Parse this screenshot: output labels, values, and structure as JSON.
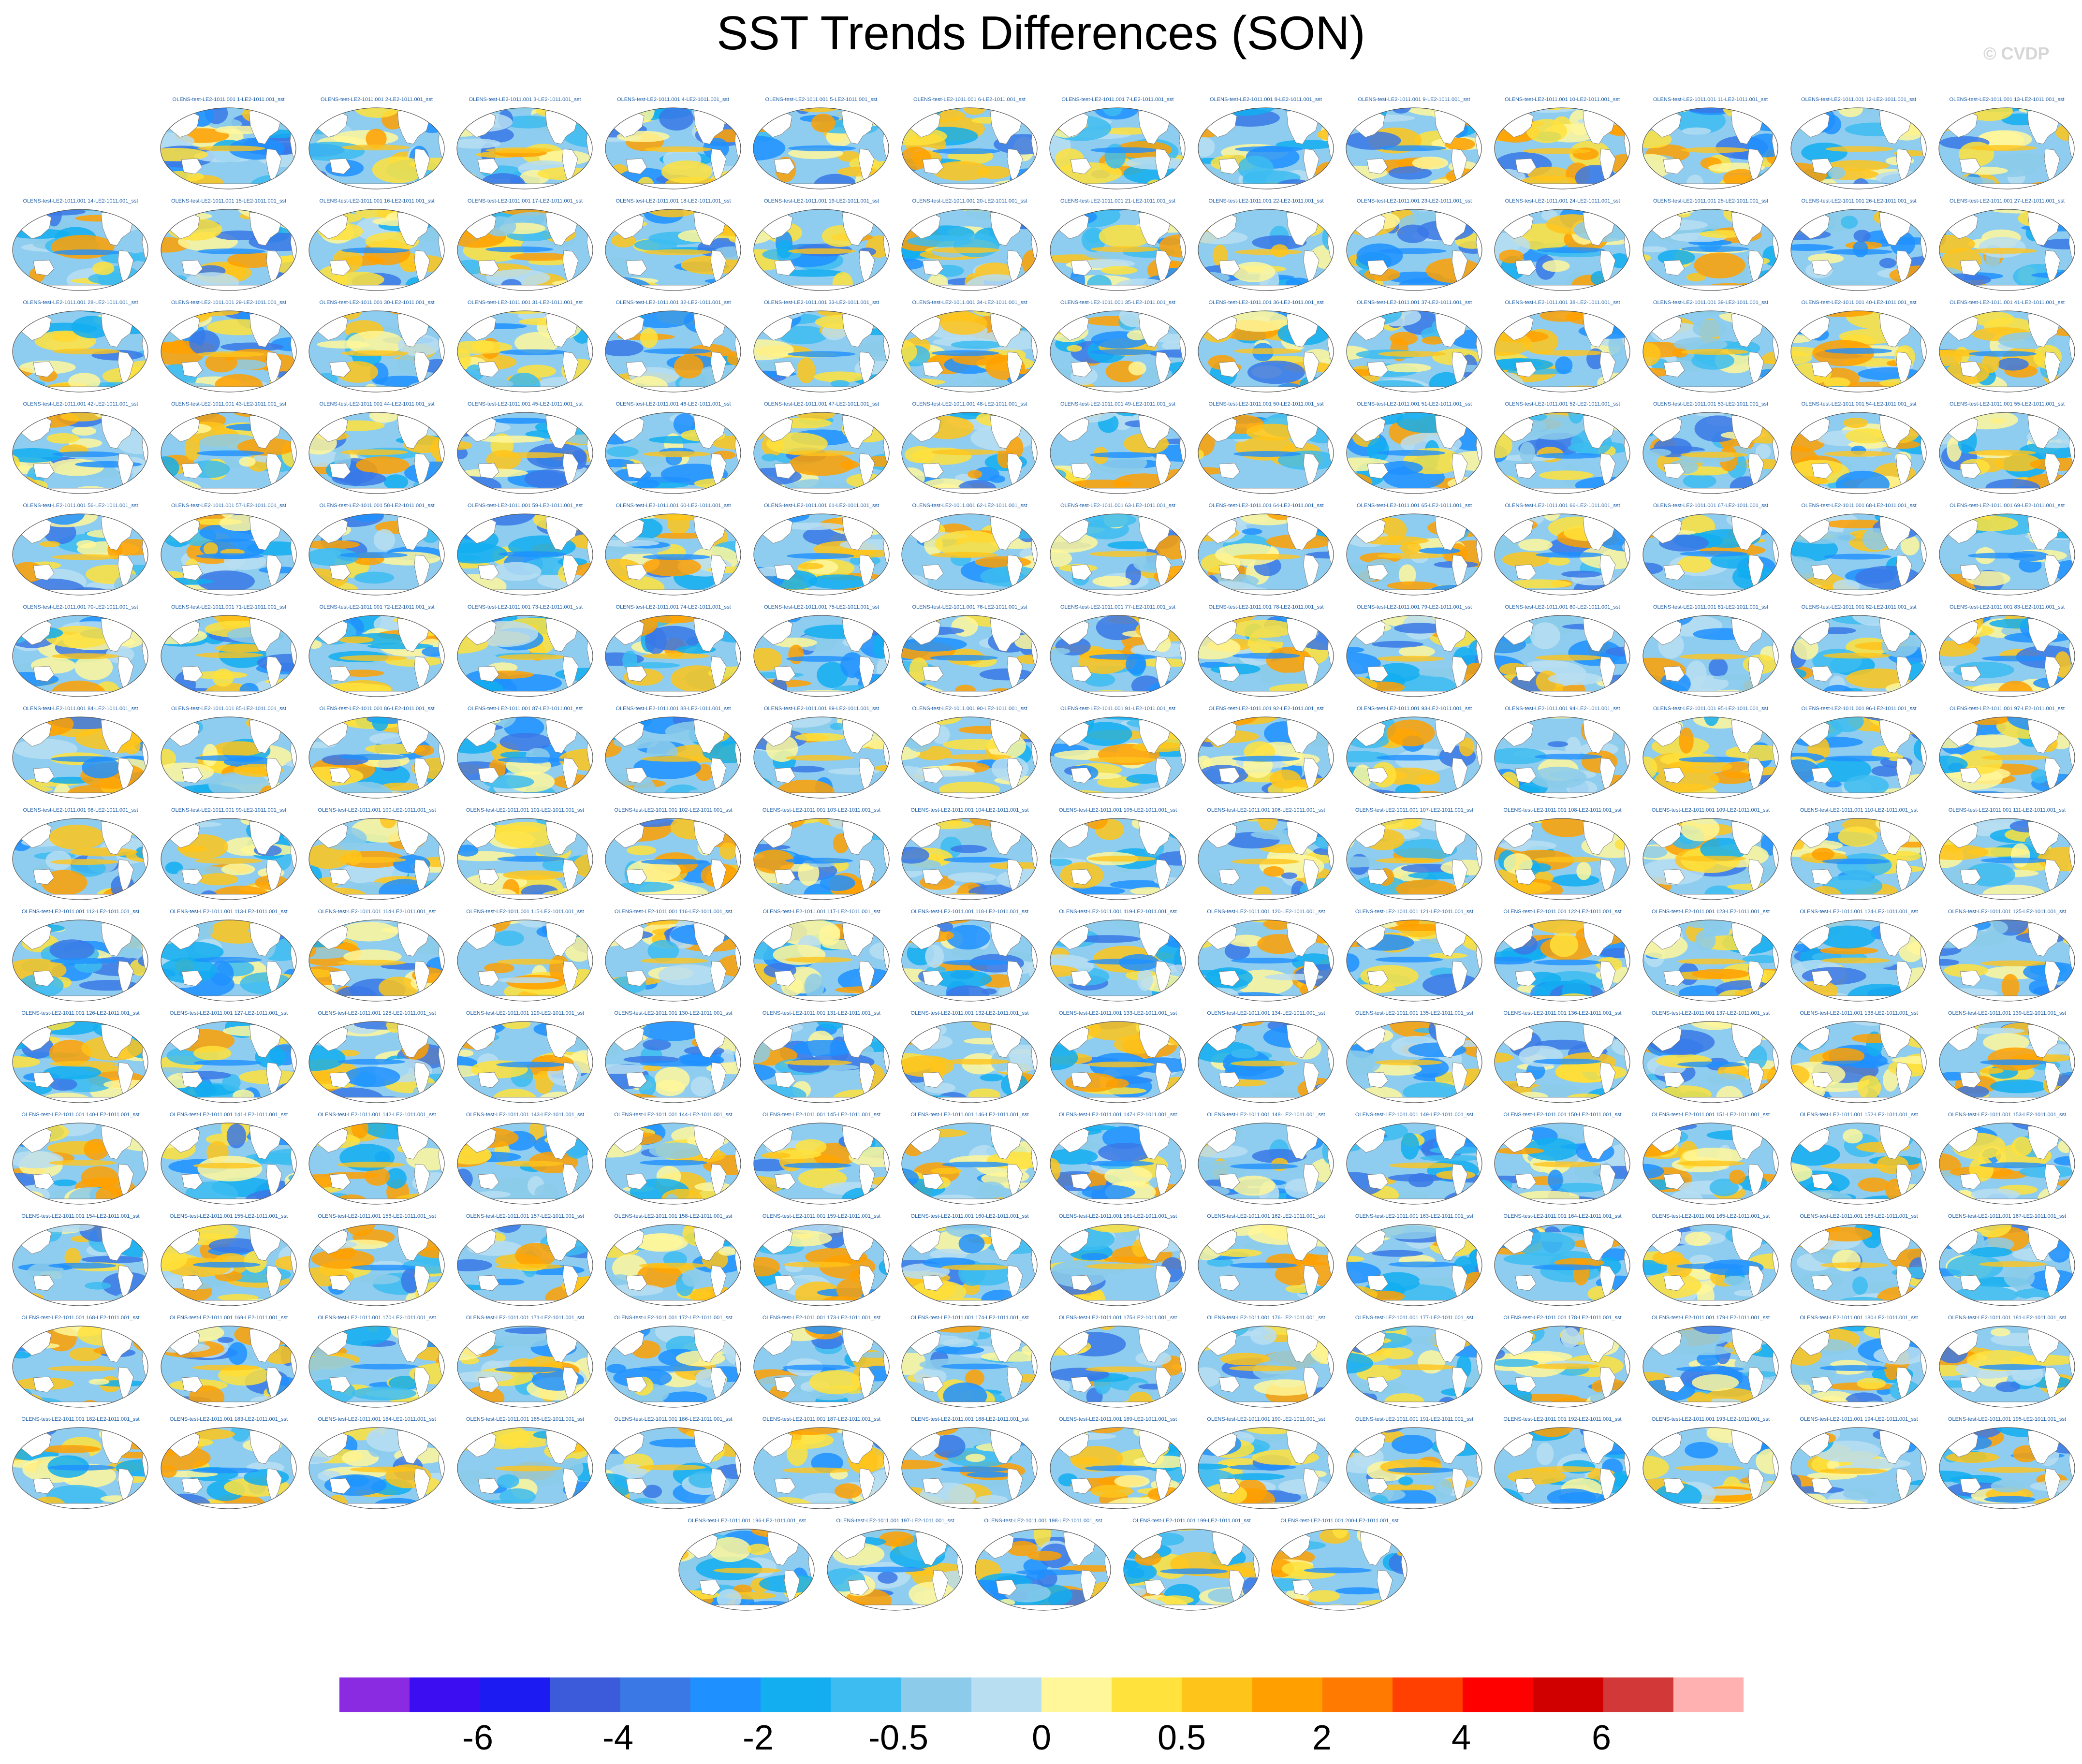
{
  "title": "SST Trends Differences (SON)",
  "watermark": "© CVDP",
  "panel_label_prefix": "OLENS-test-LE2-1011.001",
  "panel_label_suffix": "-LE2-1011.001_sst",
  "panel_count": 200,
  "colorbar": {
    "colors": [
      "#8a2be2",
      "#3d0df2",
      "#1c1cf2",
      "#3b5bdb",
      "#3a78e6",
      "#1e90ff",
      "#12aef0",
      "#3cbcf0",
      "#8ccbea",
      "#b8def2",
      "#fff79a",
      "#ffe23c",
      "#ffc41a",
      "#ffa000",
      "#ff7a00",
      "#ff4000",
      "#ff0000",
      "#d10000",
      "#d33838",
      "#ffb0b0"
    ],
    "labels": [
      "-6",
      "-4",
      "-2",
      "-0.5",
      "0",
      "0.5",
      "2",
      "4",
      "6"
    ]
  }
}
